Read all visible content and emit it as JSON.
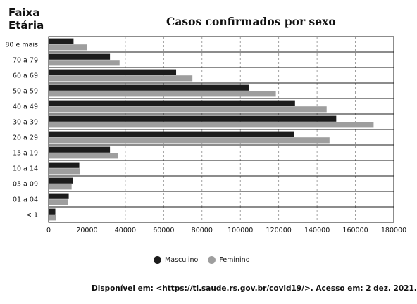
{
  "chart_data": {
    "type": "bar",
    "orientation": "horizontal",
    "title": "Casos confirmados por sexo",
    "ylabel_line1": "Faixa",
    "ylabel_line2": "Etária",
    "categories": [
      "80 e mais",
      "70 a 79",
      "60 a 69",
      "50 a 59",
      "40 a 49",
      "30 a 39",
      "20 a 29",
      "15 a 19",
      "10 a 14",
      "05 a 09",
      "01 a 04",
      "< 1"
    ],
    "series": [
      {
        "name": "Masculino",
        "color": "#1c1c1c",
        "values": [
          13000,
          32000,
          66500,
          104500,
          128500,
          150000,
          128000,
          32000,
          16000,
          12500,
          10500,
          3500
        ]
      },
      {
        "name": "Feminino",
        "color": "#9e9e9e",
        "values": [
          20000,
          37000,
          75000,
          118500,
          145000,
          169500,
          146500,
          36000,
          16500,
          12000,
          10000,
          3800
        ]
      }
    ],
    "xlim": [
      0,
      180000
    ],
    "xticks": [
      0,
      20000,
      40000,
      60000,
      80000,
      100000,
      120000,
      140000,
      160000,
      180000
    ],
    "grid": "vertical-dashed",
    "legend": "bottom-center"
  },
  "legend": {
    "masculino": "Masculino",
    "feminino": "Feminino"
  },
  "source": "Disponível em: <https://ti.saude.rs.gov.br/covid19/>.   Acesso em: 2 dez. 2021."
}
